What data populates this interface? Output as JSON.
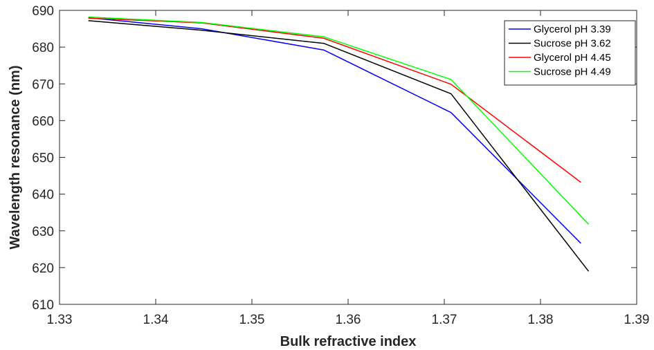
{
  "chart_data": {
    "type": "line",
    "title": "",
    "xlabel": "Bulk refractive index",
    "ylabel": "Wavelength resonance (nm)",
    "xlim": [
      1.33,
      1.39
    ],
    "ylim": [
      610,
      690
    ],
    "xticks": [
      1.33,
      1.34,
      1.35,
      1.36,
      1.37,
      1.38,
      1.39
    ],
    "xtick_labels": [
      "1.33",
      "1.34",
      "1.35",
      "1.36",
      "1.37",
      "1.38",
      "1.39"
    ],
    "yticks": [
      610,
      620,
      630,
      640,
      650,
      660,
      670,
      680,
      690
    ],
    "ytick_labels": [
      "610",
      "620",
      "630",
      "640",
      "650",
      "660",
      "670",
      "680",
      "690"
    ],
    "grid": false,
    "legend_position": "top-right",
    "series": [
      {
        "name": "Glycerol pH 3.39",
        "color": "#0000ff",
        "x": [
          1.333,
          1.3448,
          1.3575,
          1.3707,
          1.3842
        ],
        "y": [
          688.0,
          685.0,
          679.2,
          662.2,
          626.6
        ]
      },
      {
        "name": "Sucrose pH 3.62",
        "color": "#000000",
        "x": [
          1.333,
          1.3448,
          1.3575,
          1.3707,
          1.385
        ],
        "y": [
          687.2,
          684.6,
          681.0,
          667.3,
          619.0
        ]
      },
      {
        "name": "Glycerol pH 4.45",
        "color": "#ff0000",
        "x": [
          1.333,
          1.3448,
          1.3575,
          1.3707,
          1.3842
        ],
        "y": [
          687.9,
          686.6,
          682.4,
          669.9,
          643.2
        ]
      },
      {
        "name": "Sucrose pH 4.49",
        "color": "#00ff00",
        "x": [
          1.333,
          1.3448,
          1.3575,
          1.3707,
          1.385
        ],
        "y": [
          688.2,
          686.7,
          682.8,
          671.2,
          631.8
        ]
      }
    ]
  }
}
